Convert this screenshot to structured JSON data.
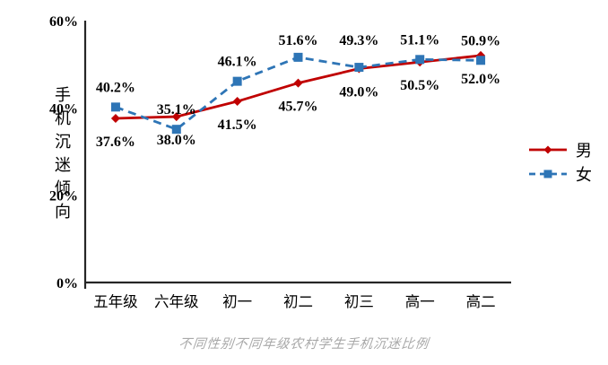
{
  "chart_data": {
    "type": "line",
    "title": "不同性别不同年级农村学生手机沉迷比例",
    "ylabel": "手机沉迷倾向",
    "categories": [
      "五年级",
      "六年级",
      "初一",
      "初二",
      "初三",
      "高一",
      "高二"
    ],
    "series": [
      {
        "name": "男",
        "color": "#c00000",
        "line_style": "solid",
        "marker": "diamond",
        "label_position": "below",
        "values": [
          37.6,
          38.0,
          41.5,
          45.7,
          49.0,
          50.5,
          52.0
        ]
      },
      {
        "name": "女",
        "color": "#2e75b6",
        "line_style": "dashed",
        "marker": "square",
        "label_position": "above",
        "values": [
          40.2,
          35.1,
          46.1,
          51.6,
          49.3,
          51.1,
          50.9
        ]
      }
    ],
    "ylim": [
      0,
      60
    ],
    "yticks": [
      0,
      20,
      40,
      60
    ],
    "ytick_format": "{v}%",
    "data_label_format": "{v}%",
    "grid": false,
    "legend_position": "right",
    "axis_color": "#262626",
    "text_color": "#000000",
    "caption_color": "#a9a9a9"
  }
}
